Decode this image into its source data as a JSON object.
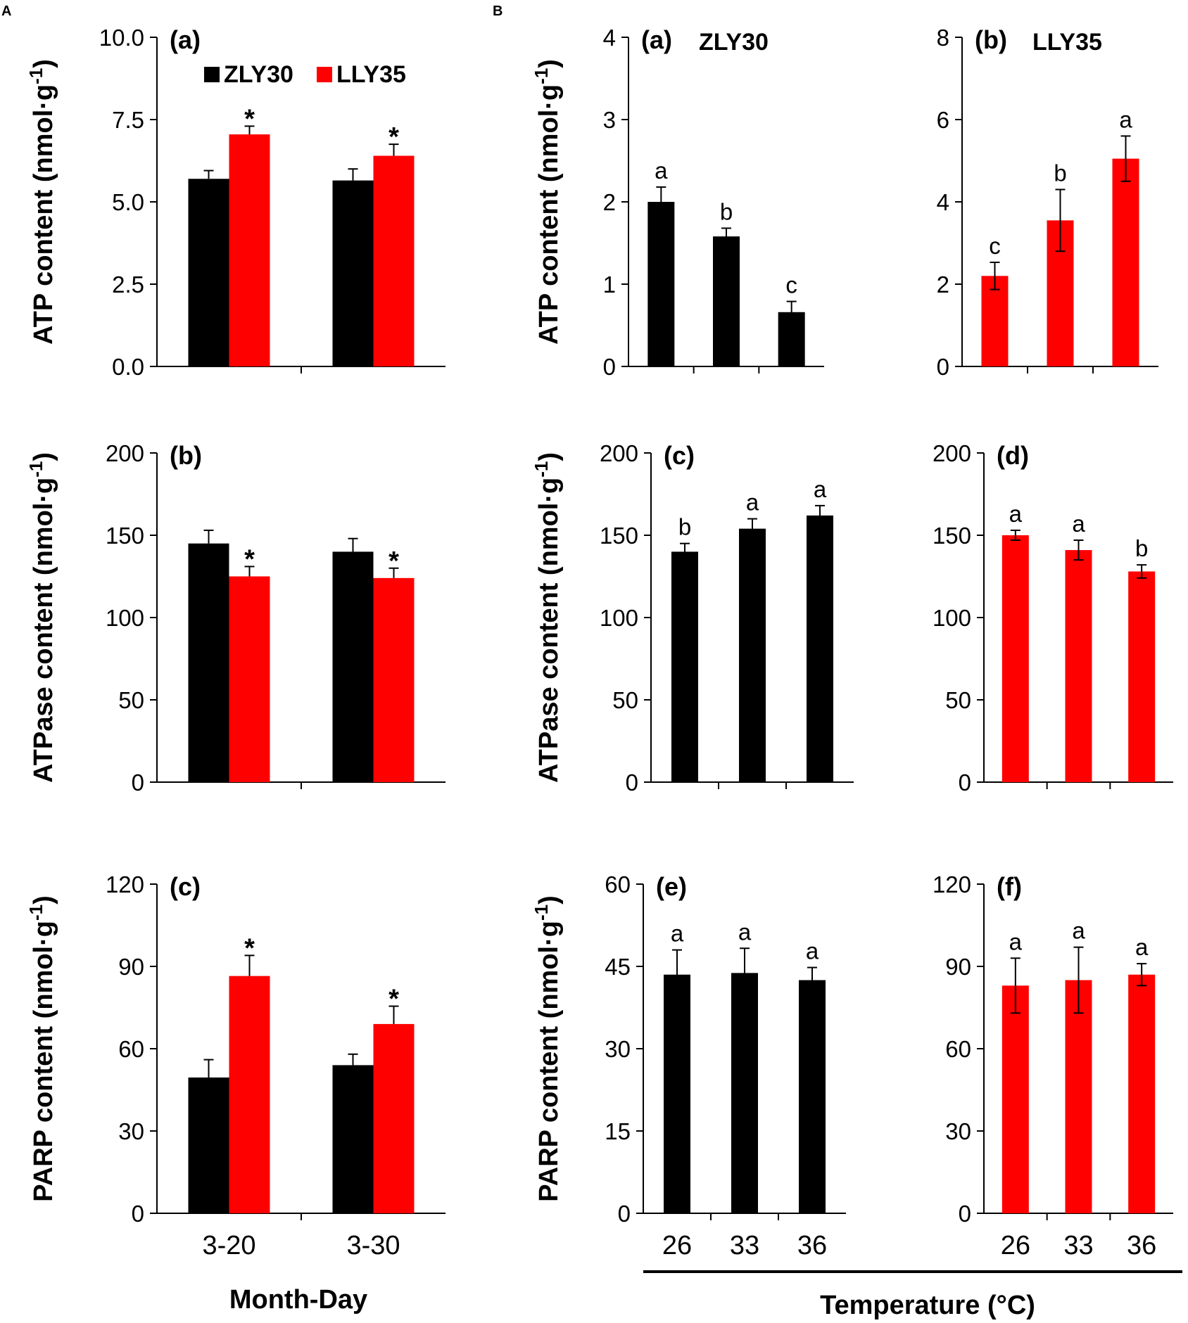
{
  "figure": {
    "section_labels": [
      "A",
      "B"
    ],
    "xlabel_A": "Month-Day",
    "xlabel_B": "Temperature (°C)"
  },
  "colors": {
    "ZLY30": "#000000",
    "LLY35": "#ff0000",
    "axis": "#000000"
  },
  "chart_data": [
    {
      "id": "A-a",
      "type": "bar",
      "title": "(a)",
      "cultivar": "",
      "ylabel": "ATP content (nmol·g-1)",
      "ylim": [
        0,
        10
      ],
      "yticks": [
        "0.0",
        "2.5",
        "5.0",
        "7.5",
        "10.0"
      ],
      "categories": [
        "3-20",
        "3-30"
      ],
      "legend": [
        "ZLY30",
        "LLY35"
      ],
      "series": [
        {
          "name": "ZLY30",
          "values": [
            5.7,
            5.65
          ],
          "errors": [
            0.25,
            0.35
          ],
          "labels": [
            "",
            ""
          ]
        },
        {
          "name": "LLY35",
          "values": [
            7.05,
            6.4
          ],
          "errors": [
            0.25,
            0.35
          ],
          "labels": [
            "*",
            "*"
          ]
        }
      ]
    },
    {
      "id": "A-b",
      "type": "bar",
      "title": "(b)",
      "cultivar": "",
      "ylabel": "ATPase content (nmol·g-1)",
      "ylim": [
        0,
        200
      ],
      "yticks": [
        "0",
        "50",
        "100",
        "150",
        "200"
      ],
      "categories": [
        "3-20",
        "3-30"
      ],
      "series": [
        {
          "name": "ZLY30",
          "values": [
            145,
            140
          ],
          "errors": [
            8,
            8
          ],
          "labels": [
            "",
            ""
          ]
        },
        {
          "name": "LLY35",
          "values": [
            125,
            124
          ],
          "errors": [
            6,
            6
          ],
          "labels": [
            "*",
            "*"
          ]
        }
      ]
    },
    {
      "id": "A-c",
      "type": "bar",
      "title": "(c)",
      "cultivar": "",
      "ylabel": "PARP content (nmol·g-1)",
      "ylim": [
        0,
        120
      ],
      "yticks": [
        "0",
        "30",
        "60",
        "90",
        "120"
      ],
      "categories": [
        "3-20",
        "3-30"
      ],
      "series": [
        {
          "name": "ZLY30",
          "values": [
            49.5,
            54
          ],
          "errors": [
            6.5,
            4
          ],
          "labels": [
            "",
            ""
          ]
        },
        {
          "name": "LLY35",
          "values": [
            86.5,
            69
          ],
          "errors": [
            7.5,
            6.5
          ],
          "labels": [
            "*",
            "*"
          ]
        }
      ]
    },
    {
      "id": "B-a",
      "type": "bar",
      "title": "(a)",
      "cultivar": "ZLY30",
      "ylabel": "ATP content (nmol·g-1)",
      "ylim": [
        0,
        4
      ],
      "yticks": [
        "0",
        "1",
        "2",
        "3",
        "4"
      ],
      "categories": [
        "26",
        "33",
        "36"
      ],
      "series": [
        {
          "name": "ZLY30",
          "values": [
            2.0,
            1.58,
            0.66
          ],
          "errors": [
            0.18,
            0.1,
            0.13
          ],
          "labels": [
            "a",
            "b",
            "c"
          ]
        }
      ]
    },
    {
      "id": "B-b",
      "type": "bar",
      "title": "(b)",
      "cultivar": "LLY35",
      "ylabel": "",
      "ylim": [
        0,
        8
      ],
      "yticks": [
        "0",
        "2",
        "4",
        "6",
        "8"
      ],
      "categories": [
        "26",
        "33",
        "36"
      ],
      "series": [
        {
          "name": "LLY35",
          "values": [
            2.2,
            3.55,
            5.05
          ],
          "errors": [
            0.33,
            0.75,
            0.55
          ],
          "labels": [
            "c",
            "b",
            "a"
          ]
        }
      ]
    },
    {
      "id": "B-c",
      "type": "bar",
      "title": "(c)",
      "cultivar": "",
      "ylabel": "ATPase content (nmol·g-1)",
      "ylim": [
        0,
        200
      ],
      "yticks": [
        "0",
        "50",
        "100",
        "150",
        "200"
      ],
      "categories": [
        "26",
        "33",
        "36"
      ],
      "series": [
        {
          "name": "ZLY30",
          "values": [
            140,
            154,
            162
          ],
          "errors": [
            5,
            6,
            6
          ],
          "labels": [
            "b",
            "a",
            "a"
          ]
        }
      ]
    },
    {
      "id": "B-d",
      "type": "bar",
      "title": "(d)",
      "cultivar": "",
      "ylabel": "",
      "ylim": [
        0,
        200
      ],
      "yticks": [
        "0",
        "50",
        "100",
        "150",
        "200"
      ],
      "categories": [
        "26",
        "33",
        "36"
      ],
      "series": [
        {
          "name": "LLY35",
          "values": [
            150,
            141,
            128
          ],
          "errors": [
            3,
            6,
            4
          ],
          "labels": [
            "a",
            "a",
            "b"
          ]
        }
      ]
    },
    {
      "id": "B-e",
      "type": "bar",
      "title": "(e)",
      "cultivar": "",
      "ylabel": "PARP content (nmol·g-1)",
      "ylim": [
        0,
        60
      ],
      "yticks": [
        "0",
        "15",
        "30",
        "45",
        "60"
      ],
      "categories": [
        "26",
        "33",
        "36"
      ],
      "series": [
        {
          "name": "ZLY30",
          "values": [
            43.5,
            43.8,
            42.5
          ],
          "errors": [
            4.5,
            4.5,
            2.3
          ],
          "labels": [
            "a",
            "a",
            "a"
          ]
        }
      ]
    },
    {
      "id": "B-f",
      "type": "bar",
      "title": "(f)",
      "cultivar": "",
      "ylabel": "",
      "ylim": [
        0,
        120
      ],
      "yticks": [
        "0",
        "30",
        "60",
        "90",
        "120"
      ],
      "categories": [
        "26",
        "33",
        "36"
      ],
      "series": [
        {
          "name": "LLY35",
          "values": [
            83,
            85,
            87
          ],
          "errors": [
            10,
            12,
            4
          ],
          "labels": [
            "a",
            "a",
            "a"
          ]
        }
      ]
    }
  ]
}
